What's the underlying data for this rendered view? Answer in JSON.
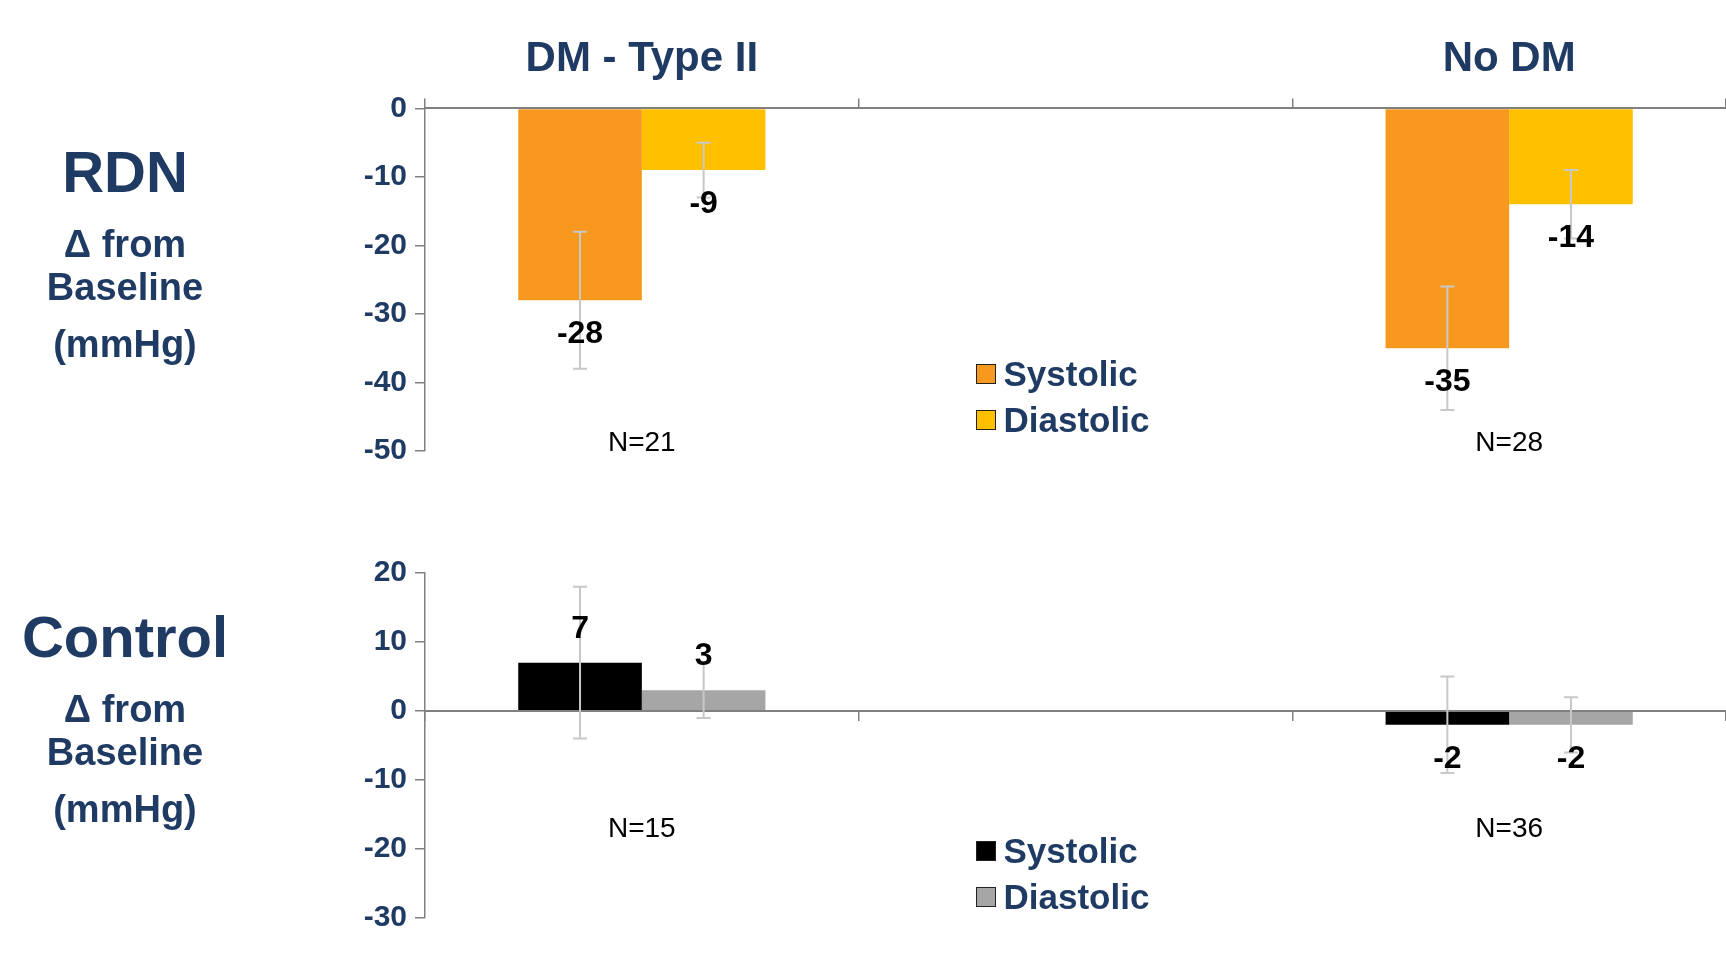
{
  "chart_data": [
    {
      "type": "bar",
      "categories": [
        "DM - Type II",
        null,
        "No DM"
      ],
      "ylabel": "RDN\nΔ from Baseline\n(mmHg)",
      "ylim": [
        -50,
        0
      ],
      "yticks": [
        -50,
        -40,
        -30,
        -20,
        -10,
        0
      ],
      "grid": false,
      "legend": "bottom",
      "data_labels": true,
      "series": [
        {
          "name": "Systolic",
          "color": "#f7991f",
          "values": [
            -28,
            null,
            -35
          ],
          "errors": [
            10,
            null,
            9
          ]
        },
        {
          "name": "Diastolic",
          "color": "#ffc000",
          "values": [
            -9,
            null,
            -14
          ],
          "errors": [
            4,
            null,
            5
          ]
        }
      ],
      "annotations": [
        "N=21",
        "N=28"
      ]
    },
    {
      "type": "bar",
      "categories": [
        null,
        null,
        null
      ],
      "ylabel": "Control\nΔ from Baseline\n(mmHg)",
      "ylim": [
        -30,
        20
      ],
      "yticks": [
        -30,
        -20,
        -10,
        0,
        10,
        20
      ],
      "grid": false,
      "legend": "bottom",
      "data_labels": true,
      "tick_labels": "y",
      "series": [
        {
          "name": "Systolic",
          "color": "#000000",
          "values": [
            7,
            null,
            -2
          ],
          "errors": [
            11,
            null,
            7
          ]
        },
        {
          "name": "Diastolic",
          "color": "#a6a6a6",
          "values": [
            3,
            null,
            -2
          ],
          "errors": [
            4,
            null,
            4
          ]
        }
      ],
      "annotations": [
        "N=15",
        "N=36"
      ],
      "ref_lines": [
        {
          "axis": "y",
          "value": 0,
          "color": "#808080"
        }
      ]
    }
  ]
}
